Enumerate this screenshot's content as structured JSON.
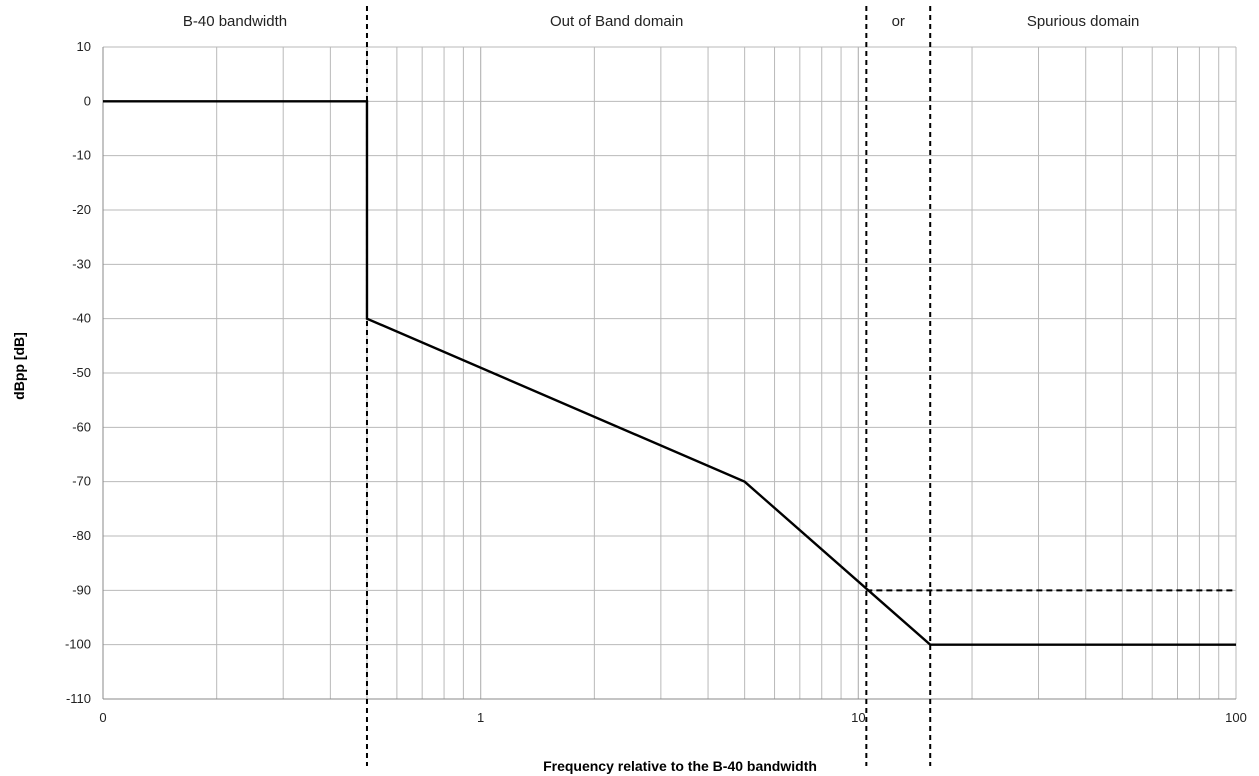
{
  "chart_data": {
    "type": "line",
    "xlabel": "Frequency relative to the B-40 bandwidth",
    "ylabel": "dBpp [dB]",
    "x_scale": "log",
    "xlim": [
      0.1,
      100
    ],
    "ylim": [
      -110,
      10
    ],
    "y_ticks": [
      10,
      0,
      -10,
      -20,
      -30,
      -40,
      -50,
      -60,
      -70,
      -80,
      -90,
      -100,
      -110
    ],
    "x_tick_labels": [
      {
        "value": 0.1,
        "label": "0"
      },
      {
        "value": 1,
        "label": "1"
      },
      {
        "value": 10,
        "label": "10"
      },
      {
        "value": 100,
        "label": "100"
      }
    ],
    "grid": true,
    "regions": [
      {
        "label": "B-40 bandwidth",
        "from": 0.1,
        "to": 0.5
      },
      {
        "label": "Out of Band domain",
        "from": 0.5,
        "to": 10.5
      },
      {
        "label": "or",
        "from": 10.5,
        "to": 15.5
      },
      {
        "label": "Spurious domain",
        "from": 15.5,
        "to": 100
      }
    ],
    "boundaries": [
      0.5,
      10.5,
      15.5
    ],
    "series": [
      {
        "style": "solid",
        "points": [
          [
            0.1,
            0
          ],
          [
            0.5,
            0
          ],
          [
            0.5,
            -40
          ],
          [
            5,
            -70
          ],
          [
            15.5,
            -100
          ],
          [
            100,
            -100
          ]
        ]
      },
      {
        "style": "dashed",
        "points": [
          [
            10.5,
            -90
          ],
          [
            100,
            -90
          ]
        ]
      }
    ]
  }
}
